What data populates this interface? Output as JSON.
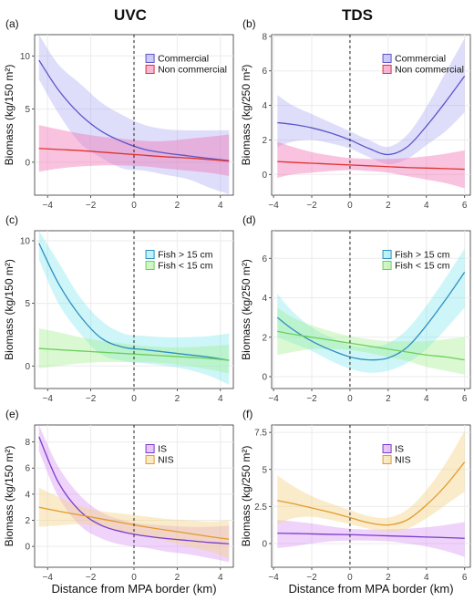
{
  "column_titles": [
    "UVC",
    "TDS"
  ],
  "shared_xlabel": "Distance from MPA border (km)",
  "colors": {
    "commercial": "#5b55c9",
    "non_commercial": "#e0332e",
    "fish_large": "#2f8fc4",
    "fish_small": "#6ccf5a",
    "is": "#7a3ccd",
    "nis": "#e39a2b"
  },
  "chart_data": [
    {
      "type": "line",
      "panel_label": "(a)",
      "ylabel": "Biomass (kg/150 m²)",
      "xlim": [
        -4.6,
        4.6
      ],
      "xticks": [
        -4,
        -2,
        0,
        2,
        4
      ],
      "ylim": [
        -3.1,
        12.0
      ],
      "yticks": [
        0,
        5,
        10
      ],
      "x": [
        -4.4,
        -3.5,
        -2.5,
        -1.5,
        -0.5,
        0.5,
        1.5,
        2.5,
        3.5,
        4.4
      ],
      "series": [
        {
          "name": "Commercial",
          "color": "#5b55c9",
          "fill": "#9d98f0",
          "fill_opacity": 0.32,
          "y": [
            9.6,
            6.8,
            4.5,
            2.9,
            1.9,
            1.2,
            0.85,
            0.6,
            0.35,
            0.15
          ],
          "lower": [
            7.8,
            4.6,
            1.8,
            0.4,
            -0.6,
            -0.8,
            -1.2,
            -1.6,
            -2.4,
            -3.0
          ],
          "upper": [
            12.0,
            9.2,
            7.4,
            5.6,
            4.4,
            3.5,
            3.1,
            3.0,
            3.0,
            3.0
          ]
        },
        {
          "name": "Non commercial",
          "color": "#e0332e",
          "fill": "#f06fb4",
          "fill_opacity": 0.42,
          "y": [
            1.3,
            1.2,
            1.1,
            0.95,
            0.8,
            0.65,
            0.5,
            0.4,
            0.25,
            0.1
          ],
          "lower": [
            -0.9,
            -0.6,
            -0.4,
            -0.3,
            -0.3,
            -0.4,
            -0.6,
            -0.8,
            -1.0,
            -1.3
          ],
          "upper": [
            3.5,
            3.1,
            2.7,
            2.4,
            2.2,
            2.0,
            2.0,
            2.2,
            2.4,
            2.6
          ]
        }
      ]
    },
    {
      "type": "line",
      "panel_label": "(b)",
      "ylabel": "Biomass (kg/250 m²)",
      "xlim": [
        -4.1,
        6.3
      ],
      "xticks": [
        -4,
        -2,
        0,
        2,
        4,
        6
      ],
      "ylim": [
        -1.2,
        8.1
      ],
      "yticks": [
        0,
        2,
        4,
        6,
        8
      ],
      "x": [
        -3.8,
        -3,
        -2,
        -1,
        0,
        1,
        2,
        3,
        4,
        5,
        6
      ],
      "series": [
        {
          "name": "Commercial",
          "color": "#5b55c9",
          "fill": "#9d98f0",
          "fill_opacity": 0.32,
          "y": [
            3.0,
            2.9,
            2.7,
            2.4,
            2.0,
            1.5,
            1.15,
            1.6,
            2.8,
            4.2,
            5.7
          ],
          "lower": [
            1.6,
            1.9,
            2.0,
            1.8,
            1.5,
            1.0,
            0.6,
            0.9,
            1.7,
            2.5,
            3.6
          ],
          "upper": [
            4.6,
            4.0,
            3.5,
            3.0,
            2.5,
            2.0,
            1.6,
            2.3,
            3.9,
            5.9,
            7.9
          ]
        },
        {
          "name": "Non commercial",
          "color": "#e0332e",
          "fill": "#f06fb4",
          "fill_opacity": 0.42,
          "y": [
            0.75,
            0.7,
            0.65,
            0.6,
            0.55,
            0.5,
            0.45,
            0.4,
            0.37,
            0.34,
            0.3
          ],
          "lower": [
            -0.2,
            0.0,
            0.1,
            0.2,
            0.25,
            0.2,
            0.1,
            -0.1,
            -0.3,
            -0.5,
            -0.8
          ],
          "upper": [
            1.9,
            1.6,
            1.3,
            1.1,
            0.95,
            0.9,
            0.9,
            0.95,
            1.05,
            1.2,
            1.4
          ]
        }
      ]
    },
    {
      "type": "line",
      "panel_label": "(c)",
      "ylabel": "Biomass (kg/150 m²)",
      "xlim": [
        -4.6,
        4.6
      ],
      "xticks": [
        -4,
        -2,
        0,
        2,
        4
      ],
      "ylim": [
        -1.8,
        10.8
      ],
      "yticks": [
        0,
        5,
        10
      ],
      "x": [
        -4.4,
        -3.5,
        -2.5,
        -1.5,
        -0.5,
        0.5,
        1.5,
        2.5,
        3.5,
        4.4
      ],
      "series": [
        {
          "name": "Fish > 15 cm",
          "color": "#2f8fc4",
          "fill": "#7fe8ec",
          "fill_opacity": 0.38,
          "y": [
            9.8,
            6.6,
            4.0,
            2.2,
            1.5,
            1.3,
            1.1,
            0.9,
            0.7,
            0.45
          ],
          "lower": [
            8.5,
            5.0,
            2.6,
            0.9,
            0.4,
            0.2,
            0.0,
            -0.3,
            -0.8,
            -1.5
          ],
          "upper": [
            10.8,
            8.3,
            5.5,
            3.6,
            2.6,
            2.4,
            2.3,
            2.3,
            2.4,
            2.6
          ]
        },
        {
          "name": "Fish < 15 cm",
          "color": "#6ccf5a",
          "fill": "#9ff08a",
          "fill_opacity": 0.38,
          "y": [
            1.4,
            1.3,
            1.2,
            1.1,
            1.0,
            0.9,
            0.8,
            0.7,
            0.6,
            0.45
          ],
          "lower": [
            -0.2,
            0.0,
            0.2,
            0.3,
            0.3,
            0.3,
            0.2,
            0.0,
            -0.3,
            -0.6
          ],
          "upper": [
            3.0,
            2.7,
            2.3,
            2.0,
            1.8,
            1.6,
            1.5,
            1.5,
            1.6,
            1.7
          ]
        }
      ]
    },
    {
      "type": "line",
      "panel_label": "(d)",
      "ylabel": "Biomass (kg/250 m²)",
      "xlim": [
        -4.1,
        6.3
      ],
      "xticks": [
        -4,
        -2,
        0,
        2,
        4,
        6
      ],
      "ylim": [
        -0.6,
        7.4
      ],
      "yticks": [
        0,
        2,
        4,
        6
      ],
      "x": [
        -3.8,
        -3,
        -2,
        -1,
        0,
        1,
        2,
        3,
        4,
        5,
        6
      ],
      "series": [
        {
          "name": "Fish > 15 cm",
          "color": "#2f8fc4",
          "fill": "#7fe8ec",
          "fill_opacity": 0.38,
          "y": [
            3.0,
            2.4,
            1.8,
            1.35,
            1.0,
            0.85,
            0.95,
            1.5,
            2.6,
            3.9,
            5.3
          ],
          "lower": [
            2.0,
            1.7,
            1.3,
            0.8,
            0.4,
            0.2,
            0.3,
            0.7,
            1.4,
            2.4,
            3.5
          ],
          "upper": [
            4.2,
            3.3,
            2.5,
            2.0,
            1.6,
            1.5,
            1.7,
            2.4,
            3.6,
            5.0,
            6.5
          ]
        },
        {
          "name": "Fish < 15 cm",
          "color": "#6ccf5a",
          "fill": "#9ff08a",
          "fill_opacity": 0.38,
          "y": [
            2.3,
            2.15,
            2.0,
            1.85,
            1.7,
            1.55,
            1.4,
            1.25,
            1.1,
            1.0,
            0.85
          ],
          "lower": [
            1.1,
            1.25,
            1.4,
            1.4,
            1.35,
            1.2,
            1.0,
            0.8,
            0.5,
            0.3,
            0.1
          ],
          "upper": [
            3.5,
            3.0,
            2.6,
            2.3,
            2.05,
            1.9,
            1.8,
            1.8,
            1.8,
            1.9,
            2.0
          ]
        }
      ]
    },
    {
      "type": "line",
      "panel_label": "(e)",
      "ylabel": "Biomass (kg/150 m²)",
      "xlim": [
        -4.6,
        4.6
      ],
      "xticks": [
        -4,
        -2,
        0,
        2,
        4
      ],
      "ylim": [
        -1.6,
        9.3
      ],
      "yticks": [
        0,
        2,
        4,
        6,
        8
      ],
      "x": [
        -4.4,
        -3.5,
        -2.5,
        -1.5,
        -0.5,
        0.5,
        1.5,
        2.5,
        3.5,
        4.4
      ],
      "series": [
        {
          "name": "IS",
          "color": "#7a3ccd",
          "fill": "#d58cf2",
          "fill_opacity": 0.38,
          "y": [
            8.4,
            4.9,
            2.7,
            1.6,
            1.1,
            0.8,
            0.6,
            0.45,
            0.3,
            0.2
          ],
          "lower": [
            7.3,
            3.8,
            1.6,
            0.6,
            0.1,
            -0.1,
            -0.4,
            -0.6,
            -0.9,
            -1.2
          ],
          "upper": [
            9.3,
            6.1,
            3.9,
            2.6,
            2.0,
            1.7,
            1.6,
            1.5,
            1.5,
            1.6
          ]
        },
        {
          "name": "NIS",
          "color": "#e39a2b",
          "fill": "#f4d58a",
          "fill_opacity": 0.45,
          "y": [
            3.0,
            2.7,
            2.4,
            2.1,
            1.8,
            1.5,
            1.25,
            1.0,
            0.75,
            0.55
          ],
          "lower": [
            1.5,
            1.6,
            1.7,
            1.5,
            1.1,
            0.8,
            0.4,
            0.0,
            -0.4,
            -0.9
          ],
          "upper": [
            4.5,
            3.8,
            3.1,
            2.7,
            2.5,
            2.3,
            2.1,
            2.0,
            1.9,
            2.0
          ]
        }
      ]
    },
    {
      "type": "line",
      "panel_label": "(f)",
      "ylabel": "Biomass (kg/250 m²)",
      "xlim": [
        -4.1,
        6.3
      ],
      "xticks": [
        -4,
        -2,
        0,
        2,
        4,
        6
      ],
      "ylim": [
        -1.6,
        8.0
      ],
      "yticks": [
        0,
        2.5,
        5,
        7.5
      ],
      "ytick_labels": [
        "0",
        "2.5",
        "5",
        "7.5"
      ],
      "x": [
        -3.8,
        -3,
        -2,
        -1,
        0,
        1,
        2,
        3,
        4,
        5,
        6
      ],
      "series": [
        {
          "name": "IS",
          "color": "#7a3ccd",
          "fill": "#d58cf2",
          "fill_opacity": 0.38,
          "y": [
            0.7,
            0.68,
            0.65,
            0.62,
            0.6,
            0.56,
            0.52,
            0.48,
            0.44,
            0.4,
            0.35
          ],
          "lower": [
            -0.3,
            -0.2,
            0.0,
            0.15,
            0.2,
            0.2,
            0.15,
            0.0,
            -0.2,
            -0.5,
            -0.9
          ],
          "upper": [
            1.6,
            1.5,
            1.35,
            1.15,
            1.0,
            0.95,
            0.95,
            1.0,
            1.1,
            1.25,
            1.45
          ]
        },
        {
          "name": "NIS",
          "color": "#e39a2b",
          "fill": "#f4d58a",
          "fill_opacity": 0.45,
          "y": [
            2.9,
            2.7,
            2.4,
            2.1,
            1.75,
            1.4,
            1.25,
            1.6,
            2.6,
            3.9,
            5.5
          ],
          "lower": [
            1.3,
            1.7,
            1.8,
            1.6,
            1.3,
            1.0,
            0.8,
            1.0,
            1.7,
            2.6,
            3.5
          ],
          "upper": [
            4.6,
            3.9,
            3.2,
            2.7,
            2.25,
            1.85,
            1.75,
            2.3,
            3.6,
            5.4,
            7.6
          ]
        }
      ]
    }
  ]
}
